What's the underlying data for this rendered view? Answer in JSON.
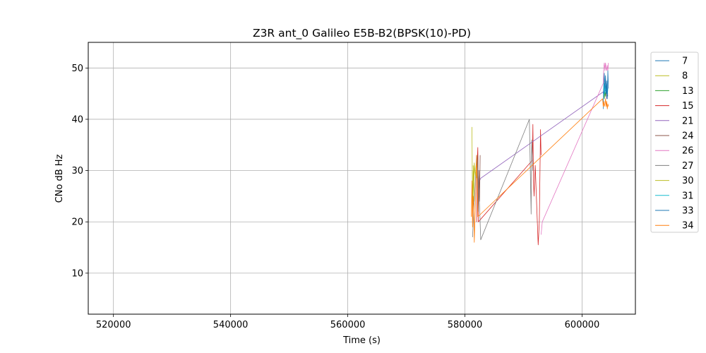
{
  "chart_data": {
    "type": "line",
    "title": "Z3R ant_0 Galileo E5B-B2(BPSK(10)-PD)",
    "xlabel": "Time (s)",
    "ylabel": "CNo dB Hz",
    "xlim": [
      515700,
      609100
    ],
    "ylim": [
      2,
      55
    ],
    "x_ticks": [
      520000,
      540000,
      560000,
      580000,
      600000
    ],
    "y_ticks": [
      10,
      20,
      30,
      40,
      50
    ],
    "grid": true,
    "legend_position": "outside-right",
    "series": [
      {
        "name": "7",
        "color": "#1f77b4",
        "x": [
          603600,
          603700,
          603800,
          603900,
          604000,
          604100,
          604200,
          604300
        ],
        "y": [
          45,
          46,
          44.5,
          47,
          45.5,
          46.5,
          45,
          46
        ]
      },
      {
        "name": "8",
        "color": "#bcbd22",
        "x": [
          581200,
          581300,
          581400,
          581500,
          581600
        ],
        "y": [
          38.5,
          22,
          30,
          24,
          31
        ]
      },
      {
        "name": "13",
        "color": "#2ca02c",
        "x": [
          603700,
          603800,
          603900,
          604000,
          604100,
          604200,
          604300,
          604400
        ],
        "y": [
          45,
          44,
          46,
          44.5,
          45.5,
          44,
          45,
          44.5
        ]
      },
      {
        "name": "15",
        "color": "#d62728",
        "x": [
          582000,
          582100,
          582200,
          582300,
          591500,
          591600,
          591700,
          591800,
          592000,
          592500,
          592700,
          592900,
          593000
        ],
        "y": [
          20,
          32,
          34.5,
          20,
          32,
          39,
          28,
          25,
          31,
          15.5,
          20,
          38,
          33
        ]
      },
      {
        "name": "21",
        "color": "#9467bd",
        "x": [
          582500,
          582700,
          603800,
          604000,
          604200,
          604400
        ],
        "y": [
          28,
          28.5,
          45.5,
          46.5,
          44,
          45
        ]
      },
      {
        "name": "24",
        "color": "#8c564b",
        "x": [
          582100,
          582200,
          582300,
          582400,
          582500,
          582600
        ],
        "y": [
          27,
          33,
          22,
          30,
          24,
          33
        ]
      },
      {
        "name": "26",
        "color": "#e377c2",
        "x": [
          593000,
          593200,
          603600,
          603700,
          603800,
          603900,
          604000,
          604100,
          604200,
          604300,
          604400,
          604500
        ],
        "y": [
          17.5,
          20,
          47,
          50,
          51,
          49.5,
          51,
          50,
          49.5,
          50.5,
          49.5,
          51
        ]
      },
      {
        "name": "27",
        "color": "#7f7f7f",
        "x": [
          581300,
          581500,
          581700,
          582000,
          582200,
          582500,
          582700,
          591000,
          591300,
          591400,
          591600
        ],
        "y": [
          17,
          22,
          26,
          33,
          30,
          23,
          16.5,
          40,
          21.5,
          36,
          30
        ]
      },
      {
        "name": "30",
        "color": "#bcbd22",
        "x": [
          581400,
          581500,
          581600,
          581700,
          581800,
          581900,
          582000
        ],
        "y": [
          31,
          28,
          31.5,
          30,
          29,
          31,
          28.5
        ]
      },
      {
        "name": "31",
        "color": "#17becf",
        "x": [
          603700,
          603800,
          603900,
          604000,
          604100,
          604200,
          604300,
          604400
        ],
        "y": [
          44.5,
          47,
          45,
          46.5,
          45.5,
          47,
          44.5,
          46
        ]
      },
      {
        "name": "33",
        "color": "#1f77b4",
        "x": [
          603600,
          603700,
          603800,
          603900,
          604000,
          604100,
          604200,
          604300,
          604400,
          604500
        ],
        "y": [
          42,
          47,
          49,
          46,
          48.5,
          45,
          47.5,
          44,
          49.5,
          46
        ]
      },
      {
        "name": "34",
        "color": "#ff7f0e",
        "x": [
          581100,
          581200,
          581300,
          581400,
          581500,
          581600,
          581700,
          581800,
          582000,
          582100,
          582200,
          603500,
          603600,
          603700,
          603800,
          603900,
          604000,
          604100,
          604200,
          604300,
          604400,
          604500
        ],
        "y": [
          21,
          28,
          19,
          25,
          23,
          16,
          20,
          24,
          33,
          28,
          21,
          44,
          42.5,
          43.5,
          42.5,
          43,
          44,
          42.5,
          43.5,
          42,
          43,
          42.5
        ]
      }
    ]
  }
}
